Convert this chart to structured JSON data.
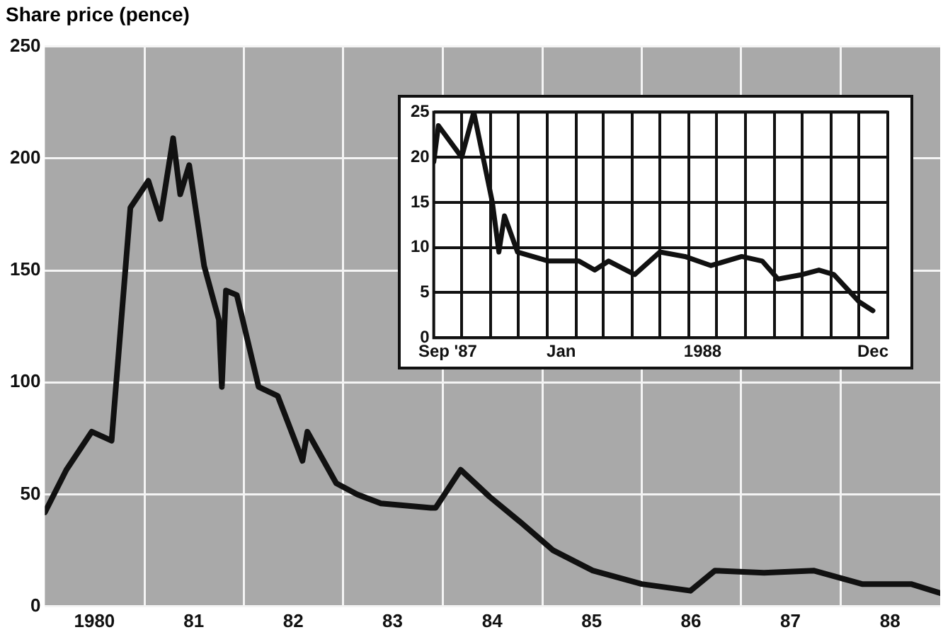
{
  "chart_data": [
    {
      "type": "line",
      "ylabel": "Share price (pence)",
      "grid": true,
      "legend": false,
      "xlim": [
        "1980-01-01",
        "1989-01-01"
      ],
      "ylim": [
        0,
        250
      ],
      "xticks": [
        {
          "value": "1980-07-01",
          "label": "1980"
        },
        {
          "value": "1981-01-01",
          "label": null
        },
        {
          "value": "1981-07-01",
          "label": "81"
        },
        {
          "value": "1982-01-01",
          "label": null
        },
        {
          "value": "1982-07-01",
          "label": "82"
        },
        {
          "value": "1983-01-01",
          "label": null
        },
        {
          "value": "1983-07-01",
          "label": "83"
        },
        {
          "value": "1984-01-01",
          "label": null
        },
        {
          "value": "1984-07-01",
          "label": "84"
        },
        {
          "value": "1985-01-01",
          "label": null
        },
        {
          "value": "1985-07-01",
          "label": "85"
        },
        {
          "value": "1986-01-01",
          "label": null
        },
        {
          "value": "1986-07-01",
          "label": "86"
        },
        {
          "value": "1987-01-01",
          "label": null
        },
        {
          "value": "1987-07-01",
          "label": "87"
        },
        {
          "value": "1988-01-01",
          "label": null
        },
        {
          "value": "1988-07-01",
          "label": "88"
        }
      ],
      "yticks": [
        0,
        50,
        100,
        150,
        200,
        250
      ],
      "x": [
        "1980-01-01",
        "1980-03-20",
        "1980-06-21",
        "1980-09-02",
        "1980-11-10",
        "1981-01-15",
        "1981-02-28",
        "1981-04-16",
        "1981-05-12",
        "1981-06-14",
        "1981-08-08",
        "1981-10-01",
        "1981-10-12",
        "1981-10-27",
        "1981-12-06",
        "1982-02-24",
        "1982-05-05",
        "1982-07-20",
        "1982-08-04",
        "1982-08-22",
        "1982-12-06",
        "1983-02-21",
        "1983-05-19",
        "1983-11-18",
        "1983-12-06",
        "1984-03-07",
        "1984-06-21",
        "1984-10-09",
        "1985-02-10",
        "1985-07-05",
        "1986-01-01",
        "1986-06-29",
        "1986-09-27",
        "1987-03-26",
        "1987-09-24",
        "1988-03-20",
        "1988-09-16",
        "1989-01-01"
      ],
      "series": [
        {
          "color": "#111111",
          "values": [
            42,
            61,
            78,
            74,
            178,
            190,
            173,
            209,
            184,
            197,
            152,
            128,
            98,
            141,
            139,
            98,
            94,
            70,
            65,
            78,
            55,
            50,
            46,
            44,
            44,
            61,
            49,
            38,
            25,
            16,
            10,
            7,
            16,
            15,
            16,
            10,
            10,
            6
          ]
        }
      ]
    },
    {
      "type": "line",
      "grid": true,
      "legend": false,
      "xlim": [
        "1987-09-01",
        "1989-01-01"
      ],
      "ylim": [
        0,
        25
      ],
      "xticks": [
        {
          "value": "1987-09-16",
          "label": "Sep '87"
        },
        {
          "value": "1988-01-16",
          "label": "Jan"
        },
        {
          "value": "1988-06-16",
          "label": "1988"
        },
        {
          "value": "1988-12-16",
          "label": "Dec"
        },
        {
          "value": "1987-10-01",
          "label": null
        },
        {
          "value": "1987-11-01",
          "label": null
        },
        {
          "value": "1987-12-01",
          "label": null
        },
        {
          "value": "1988-01-01",
          "label": null
        },
        {
          "value": "1988-02-01",
          "label": null
        },
        {
          "value": "1988-03-01",
          "label": null
        },
        {
          "value": "1988-04-01",
          "label": null
        },
        {
          "value": "1988-05-01",
          "label": null
        },
        {
          "value": "1988-06-01",
          "label": null
        },
        {
          "value": "1988-07-01",
          "label": null
        },
        {
          "value": "1988-08-01",
          "label": null
        },
        {
          "value": "1988-09-01",
          "label": null
        },
        {
          "value": "1988-10-01",
          "label": null
        },
        {
          "value": "1988-11-01",
          "label": null
        },
        {
          "value": "1988-12-01",
          "label": null
        }
      ],
      "yticks": [
        0,
        5,
        10,
        15,
        20,
        25
      ],
      "x": [
        "1987-09-01",
        "1987-09-06",
        "1987-10-01",
        "1987-10-14",
        "1987-11-03",
        "1987-11-10",
        "1987-11-16",
        "1987-11-30",
        "1988-01-02",
        "1988-02-04",
        "1988-02-21",
        "1988-03-07",
        "1988-04-04",
        "1988-05-01",
        "1988-05-28",
        "1988-06-25",
        "1988-07-28",
        "1988-08-19",
        "1988-09-05",
        "1988-10-01",
        "1988-10-19",
        "1988-11-04",
        "1988-12-01",
        "1988-12-16"
      ],
      "series": [
        {
          "color": "#111111",
          "values": [
            19.5,
            23.5,
            20,
            25,
            15,
            9.5,
            13.5,
            9.5,
            8.5,
            8.5,
            7.5,
            8.5,
            7,
            9.5,
            9,
            8,
            9,
            8.5,
            6.5,
            7,
            7.5,
            7,
            4,
            3
          ]
        }
      ]
    }
  ]
}
